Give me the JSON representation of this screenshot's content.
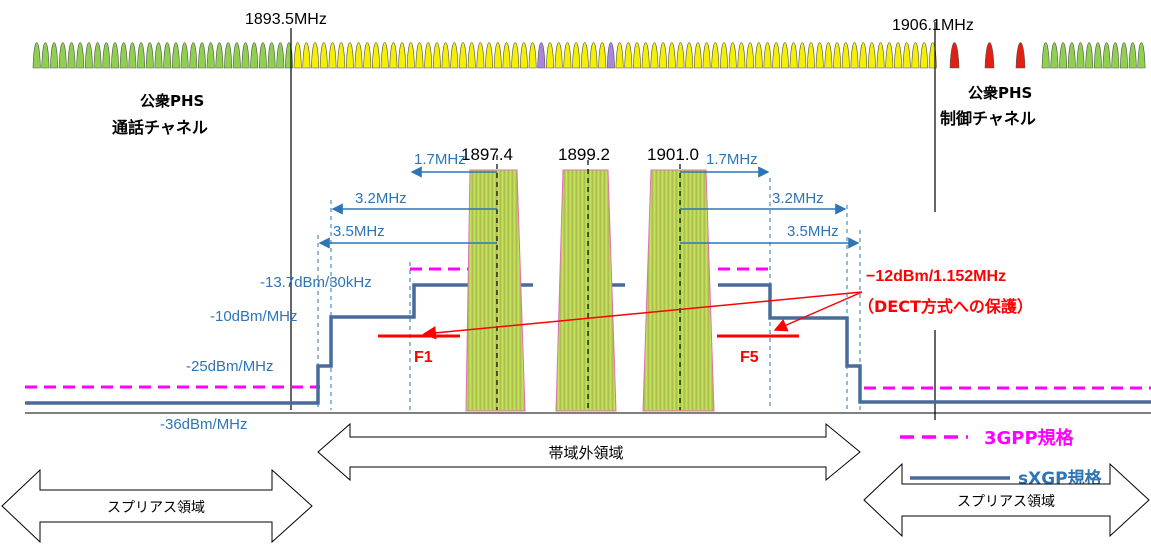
{
  "freq_labels": {
    "left_edge": "1893.5MHz",
    "right_edge": "1906.1MHz",
    "carrier1": "1897.4",
    "carrier2": "1899.2",
    "carrier3": "1901.0"
  },
  "phs_labels": {
    "left_line1": "公衆PHS",
    "left_line2": "通話チャネル",
    "right_line1": "公衆PHS",
    "right_line2": "制御チャネル"
  },
  "offsets": {
    "left_17": "1.7MHz",
    "left_32": "3.2MHz",
    "left_35": "3.5MHz",
    "right_17": "1.7MHz",
    "right_32": "3.2MHz",
    "right_35": "3.5MHz"
  },
  "levels": {
    "l1": "-13.7dBm/30kHz",
    "l2": "-10dBm/MHz",
    "l3": "-25dBm/MHz",
    "l4": "-36dBm/MHz"
  },
  "dect": {
    "line1": "−12dBm/1.152MHz",
    "line2": "（DECT方式への保護）",
    "f1": "F1",
    "f5": "F5"
  },
  "legend": {
    "gpp": "3GPP規格",
    "sxgp": "sXGP規格"
  },
  "regions": {
    "oob": "帯域外領域",
    "spurious_left": "スプリアス領域",
    "spurious_right": "スプリアス領域"
  },
  "colors": {
    "phs_green": "#8fd14f",
    "phs_yellow": "#f5f000",
    "phs_purple": "#a987d8",
    "phs_red": "#e02010",
    "carrier_fill": "#b4e04a",
    "carrier_edge": "#e070b0",
    "mask_blue": "#4a6a9a",
    "gpp_magenta": "#ff00ff",
    "label_blue": "#2e75b6",
    "dect_red": "#ff0000"
  }
}
